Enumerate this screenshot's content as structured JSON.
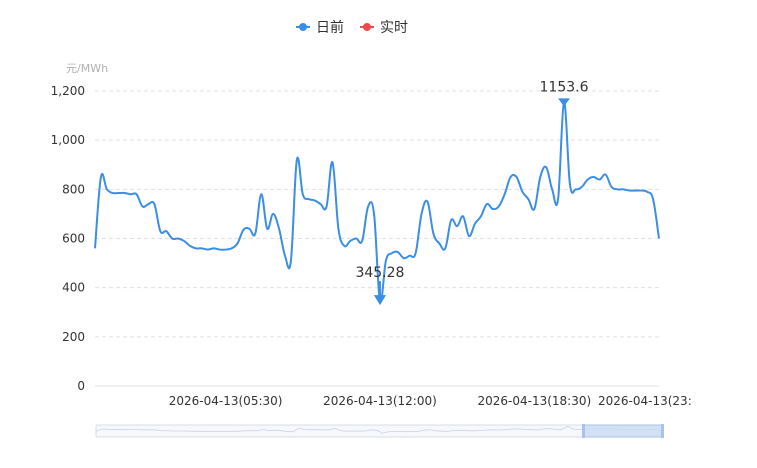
{
  "chart_data": {
    "type": "line",
    "y_unit": "元/MWh",
    "ylim": [
      0,
      1200
    ],
    "y_ticks": [
      "0",
      "200",
      "400",
      "600",
      "800",
      "1,000",
      "1,200"
    ],
    "x_tick_labels": [
      "2026-04-13(05:30)",
      "2026-04-13(12:00)",
      "2026-04-13(18:30)",
      "2026-04-13(23:"
    ],
    "x_points": 96,
    "grid": true,
    "legend_position": "top-center",
    "series": [
      {
        "name": "日前",
        "color": "#3a8ee6",
        "values": [
          560,
          850,
          800,
          785,
          785,
          785,
          780,
          780,
          730,
          740,
          740,
          630,
          630,
          600,
          600,
          590,
          570,
          560,
          560,
          555,
          560,
          555,
          555,
          560,
          580,
          635,
          640,
          620,
          780,
          640,
          700,
          640,
          530,
          510,
          920,
          780,
          760,
          755,
          740,
          730,
          910,
          640,
          570,
          590,
          600,
          590,
          730,
          700,
          345.28,
          510,
          540,
          545,
          520,
          530,
          540,
          700,
          750,
          620,
          580,
          560,
          675,
          650,
          690,
          610,
          660,
          690,
          740,
          720,
          730,
          780,
          850,
          850,
          790,
          760,
          720,
          850,
          890,
          800,
          760,
          1153.6,
          820,
          800,
          810,
          840,
          850,
          840,
          860,
          810,
          800,
          800,
          795,
          795,
          795,
          790,
          760,
          600
        ]
      },
      {
        "name": "实时",
        "color": "#ee4c4c",
        "values": []
      }
    ],
    "markers": [
      {
        "label": "1153.6",
        "type": "max",
        "index": 79,
        "value": 1153.6
      },
      {
        "label": "345.28",
        "type": "min",
        "index": 48,
        "value": 345.28
      }
    ]
  }
}
